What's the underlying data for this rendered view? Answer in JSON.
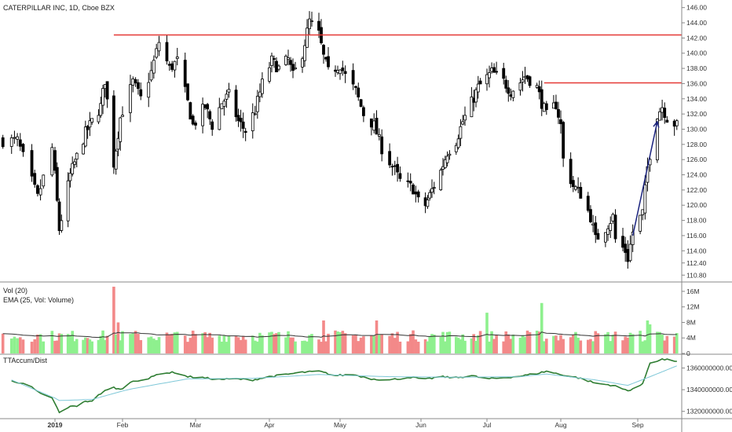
{
  "header": {
    "title": "CATERPILLAR INC, 1D, Cboe BZX"
  },
  "colors": {
    "up_candle": "#ffffff",
    "candle_outline": "#000000",
    "down_candle": "#000000",
    "vol_up": "#8ef08e",
    "vol_down": "#f38989",
    "vol_highlight_up": "#7ae57a",
    "vol_highlight_down": "#ef6b6b",
    "ema_line": "#333333",
    "resistance_line": "#e53935",
    "arrow": "#1a237e",
    "accum_line": "#2e7d32",
    "accum_signal": "#7fc8d8"
  },
  "chart_data": [
    {
      "type": "candlestick",
      "title": "CATERPILLAR INC, 1D, Cboe BZX",
      "xlabel": "",
      "ylabel": "",
      "ylim": [
        110,
        147
      ],
      "y_ticks": [
        "146.00",
        "144.00",
        "142.00",
        "140.00",
        "138.00",
        "136.00",
        "134.00",
        "132.00",
        "130.00",
        "128.00",
        "126.00",
        "124.00",
        "122.00",
        "120.00",
        "118.00",
        "116.00",
        "114.00",
        "112.40",
        "110.80"
      ],
      "x_tick_labels": [
        "2019",
        "Feb",
        "Mar",
        "Apr",
        "May",
        "Jun",
        "Jul",
        "Aug",
        "Sep"
      ],
      "grid": false,
      "horizontal_lines": [
        {
          "y": 142.4,
          "x_from": "Jan 28",
          "x_to": "end"
        },
        {
          "y": 136.1,
          "x_from": "Jul 25",
          "x_to": "end"
        }
      ],
      "arrow": {
        "from": {
          "date": "Aug 30",
          "y": 116.0
        },
        "to": {
          "date": "Sep 9",
          "y": 131.0
        }
      },
      "anchors": [
        [
          "Dec 19",
          128.5
        ],
        [
          "Dec 26",
          121.0
        ],
        [
          "Dec 31",
          127.5
        ],
        [
          "Jan 3",
          116.8
        ],
        [
          "Jan 8",
          124.0
        ],
        [
          "Jan 15",
          129.5
        ],
        [
          "Jan 22",
          133.0
        ],
        [
          "Jan 24",
          136.5
        ],
        [
          "Jan 28",
          125.5
        ],
        [
          "Jan 31",
          131.5
        ],
        [
          "Feb 5",
          136.2
        ],
        [
          "Feb 8",
          134.0
        ],
        [
          "Feb 12",
          137.5
        ],
        [
          "Feb 15",
          141.5
        ],
        [
          "Feb 19",
          138.0
        ],
        [
          "Feb 22",
          139.0
        ],
        [
          "Feb 26",
          133.5
        ],
        [
          "Feb 28",
          130.5
        ],
        [
          "Mar 5",
          133.0
        ],
        [
          "Mar 8",
          130.5
        ],
        [
          "Mar 12",
          133.5
        ],
        [
          "Mar 15",
          134.5
        ],
        [
          "Mar 19",
          131.0
        ],
        [
          "Mar 22",
          129.8
        ],
        [
          "Mar 26",
          132.5
        ],
        [
          "Mar 29",
          136.0
        ],
        [
          "Apr 2",
          139.0
        ],
        [
          "Apr 5",
          138.0
        ],
        [
          "Apr 9",
          139.2
        ],
        [
          "Apr 11",
          137.0
        ],
        [
          "Apr 15",
          140.0
        ],
        [
          "Apr 17",
          142.8
        ],
        [
          "Apr 18",
          144.2
        ],
        [
          "Apr 22",
          142.5
        ],
        [
          "Apr 24",
          139.5
        ],
        [
          "Apr 26",
          137.5
        ],
        [
          "May 1",
          138.5
        ],
        [
          "May 3",
          137.0
        ],
        [
          "May 7",
          135.0
        ],
        [
          "May 10",
          132.0
        ],
        [
          "May 14",
          130.5
        ],
        [
          "May 17",
          127.5
        ],
        [
          "May 22",
          124.5
        ],
        [
          "May 24",
          123.2
        ],
        [
          "May 29",
          122.2
        ],
        [
          "May 31",
          120.5
        ],
        [
          "Jun 3",
          120.0
        ],
        [
          "Jun 6",
          122.0
        ],
        [
          "Jun 10",
          124.5
        ],
        [
          "Jun 13",
          127.0
        ],
        [
          "Jun 17",
          128.5
        ],
        [
          "Jun 20",
          131.0
        ],
        [
          "Jun 24",
          133.5
        ],
        [
          "Jun 27",
          135.5
        ],
        [
          "Jul 1",
          136.8
        ],
        [
          "Jul 3",
          137.5
        ],
        [
          "Jul 8",
          136.3
        ],
        [
          "Jul 11",
          135.0
        ],
        [
          "Jul 15",
          136.2
        ],
        [
          "Jul 17",
          137.0
        ],
        [
          "Jul 19",
          136.5
        ],
        [
          "Jul 22",
          135.5
        ],
        [
          "Jul 24",
          133.5
        ],
        [
          "Jul 26",
          131.8
        ],
        [
          "Jul 30",
          133.3
        ],
        [
          "Aug 1",
          130.5
        ],
        [
          "Aug 2",
          126.0
        ],
        [
          "Aug 6",
          122.5
        ],
        [
          "Aug 9",
          121.5
        ],
        [
          "Aug 13",
          118.5
        ],
        [
          "Aug 15",
          115.5
        ],
        [
          "Aug 19",
          117.0
        ],
        [
          "Aug 22",
          118.5
        ],
        [
          "Aug 23",
          115.5
        ],
        [
          "Aug 27",
          114.0
        ],
        [
          "Aug 28",
          113.0
        ],
        [
          "Aug 30",
          116.5
        ],
        [
          "Sep 3",
          119.0
        ],
        [
          "Sep 5",
          125.0
        ],
        [
          "Sep 9",
          132.0
        ],
        [
          "Sep 11",
          133.0
        ],
        [
          "Sep 13",
          131.5
        ],
        [
          "Sep 17",
          130.5
        ]
      ]
    },
    {
      "type": "bar",
      "title": "Vol (20)",
      "subtitle": "EMA (25, Vol: Volume)",
      "ylim": [
        0,
        17
      ],
      "y_ticks": [
        "16M",
        "12M",
        "8M",
        "4M",
        "0"
      ],
      "notable_bars": [
        {
          "date": "Jan 28",
          "value": 17.2,
          "direction": "down"
        },
        {
          "date": "Jan 30",
          "value": 8.0,
          "direction": "down"
        },
        {
          "date": "Apr 24",
          "value": 8.5,
          "direction": "down"
        },
        {
          "date": "May 15",
          "value": 8.5,
          "direction": "down"
        },
        {
          "date": "Jul 1",
          "value": 10.5,
          "direction": "up"
        },
        {
          "date": "Jul 24",
          "value": 13.0,
          "direction": "up"
        },
        {
          "date": "Sep 5",
          "value": 8.5,
          "direction": "up"
        },
        {
          "date": "Sep 6",
          "value": 7.5,
          "direction": "up"
        }
      ],
      "typical_range": [
        3,
        6
      ],
      "ema_level": [
        3.5,
        6.5
      ]
    },
    {
      "type": "line",
      "title": "TTAccum/Dist",
      "ylim": [
        1314000000,
        1372000000
      ],
      "y_ticks": [
        "1360000000.00",
        "1340000000.00",
        "1320000000.00"
      ],
      "series": [
        {
          "role": "main",
          "points": [
            [
              "Dec 17",
              1348000000
            ],
            [
              "Dec 21",
              1346000000
            ],
            [
              "Dec 24",
              1342000000
            ],
            [
              "Dec 27",
              1336000000
            ],
            [
              "Dec 31",
              1332000000
            ],
            [
              "Jan 3",
              1318500000
            ],
            [
              "Jan 8",
              1324500000
            ],
            [
              "Jan 11",
              1325000000
            ],
            [
              "Jan 15",
              1329000000
            ],
            [
              "Jan 18",
              1330000000
            ],
            [
              "Jan 23",
              1338000000
            ],
            [
              "Jan 28",
              1342000000
            ],
            [
              "Jan 31",
              1340000000
            ],
            [
              "Feb 5",
              1348000000
            ],
            [
              "Feb 11",
              1350000000
            ],
            [
              "Feb 15",
              1355000000
            ],
            [
              "Feb 21",
              1356000000
            ],
            [
              "Feb 26",
              1352000000
            ],
            [
              "Mar 4",
              1351000000
            ],
            [
              "Mar 11",
              1349500000
            ],
            [
              "Mar 18",
              1350000000
            ],
            [
              "Mar 25",
              1349000000
            ],
            [
              "Apr 1",
              1352000000
            ],
            [
              "Apr 8",
              1354000000
            ],
            [
              "Apr 15",
              1356000000
            ],
            [
              "Apr 22",
              1357000000
            ],
            [
              "Apr 29",
              1353000000
            ],
            [
              "May 6",
              1354000000
            ],
            [
              "May 13",
              1350000000
            ],
            [
              "May 20",
              1349000000
            ],
            [
              "May 28",
              1351500000
            ],
            [
              "Jun 3",
              1349500000
            ],
            [
              "Jun 10",
              1352000000
            ],
            [
              "Jun 17",
              1351000000
            ],
            [
              "Jun 24",
              1353000000
            ],
            [
              "Jul 1",
              1350000000
            ],
            [
              "Jul 8",
              1351000000
            ],
            [
              "Jul 15",
              1352500000
            ],
            [
              "Jul 22",
              1355000000
            ],
            [
              "Jul 26",
              1357000000
            ],
            [
              "Aug 1",
              1354000000
            ],
            [
              "Aug 8",
              1351000000
            ],
            [
              "Aug 15",
              1346000000
            ],
            [
              "Aug 22",
              1344000000
            ],
            [
              "Aug 28",
              1339000000
            ],
            [
              "Sep 3",
              1345000000
            ],
            [
              "Sep 6",
              1365000000
            ],
            [
              "Sep 11",
              1368000000
            ],
            [
              "Sep 17",
              1366500000
            ]
          ]
        },
        {
          "role": "signal",
          "points": [
            [
              "Dec 17",
              1349000000
            ],
            [
              "Jan 3",
              1330000000
            ],
            [
              "Jan 18",
              1331000000
            ],
            [
              "Feb 5",
              1341000000
            ],
            [
              "Feb 26",
              1350000000
            ],
            [
              "Mar 25",
              1350500000
            ],
            [
              "Apr 22",
              1354000000
            ],
            [
              "May 20",
              1352000000
            ],
            [
              "Jun 17",
              1351500000
            ],
            [
              "Jul 15",
              1352000000
            ],
            [
              "Jul 26",
              1354500000
            ],
            [
              "Aug 15",
              1349000000
            ],
            [
              "Aug 28",
              1344000000
            ],
            [
              "Sep 6",
              1352000000
            ],
            [
              "Sep 17",
              1362000000
            ]
          ]
        }
      ]
    }
  ]
}
